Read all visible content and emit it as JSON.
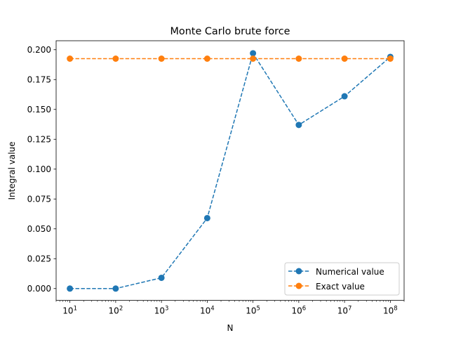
{
  "chart_data": {
    "type": "line",
    "title": "Monte Carlo brute force",
    "xlabel": "N",
    "ylabel": "Integral value",
    "xscale": "log",
    "xlim": [
      5,
      200000000
    ],
    "ylim": [
      -0.0099,
      0.2075
    ],
    "x": [
      10,
      100,
      1000,
      10000,
      100000,
      1000000,
      10000000,
      100000000
    ],
    "xticks": [
      {
        "value": 10,
        "base": "10",
        "exp": "1"
      },
      {
        "value": 100,
        "base": "10",
        "exp": "2"
      },
      {
        "value": 1000,
        "base": "10",
        "exp": "3"
      },
      {
        "value": 10000,
        "base": "10",
        "exp": "4"
      },
      {
        "value": 100000,
        "base": "10",
        "exp": "5"
      },
      {
        "value": 1000000,
        "base": "10",
        "exp": "6"
      },
      {
        "value": 10000000,
        "base": "10",
        "exp": "7"
      },
      {
        "value": 100000000,
        "base": "10",
        "exp": "8"
      }
    ],
    "yticks": [
      {
        "value": 0.0,
        "label": "0.000"
      },
      {
        "value": 0.025,
        "label": "0.025"
      },
      {
        "value": 0.05,
        "label": "0.050"
      },
      {
        "value": 0.075,
        "label": "0.075"
      },
      {
        "value": 0.1,
        "label": "0.100"
      },
      {
        "value": 0.125,
        "label": "0.125"
      },
      {
        "value": 0.15,
        "label": "0.150"
      },
      {
        "value": 0.175,
        "label": "0.175"
      },
      {
        "value": 0.2,
        "label": "0.200"
      }
    ],
    "series": [
      {
        "name": "Numerical value",
        "color": "#1f77b4",
        "linestyle": "dashed",
        "marker": "circle",
        "values": [
          0.0,
          0.0,
          0.009,
          0.059,
          0.197,
          0.137,
          0.161,
          0.194
        ]
      },
      {
        "name": "Exact value",
        "color": "#ff7f0e",
        "linestyle": "dashed",
        "marker": "circle",
        "values": [
          0.1925,
          0.1925,
          0.1925,
          0.1925,
          0.1925,
          0.1925,
          0.1925,
          0.1925
        ]
      }
    ],
    "grid": false,
    "legend": "lower-right"
  }
}
